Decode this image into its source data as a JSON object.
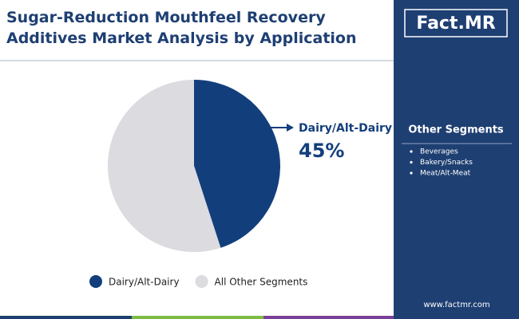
{
  "chart_data": {
    "type": "pie",
    "title": "Sugar-Reduction Mouthfeel Recovery Additives Market Analysis by Application",
    "categories": [
      "Dairy/Alt-Dairy",
      "All Other Segments"
    ],
    "values": [
      45,
      55
    ],
    "value_labels": [
      "45%",
      null
    ],
    "colors": [
      "#123f7c",
      "#dcdbe0"
    ],
    "legend": "bottom"
  },
  "logo": "Fact.MR",
  "side_panel": {
    "title": "Other Segments",
    "items": [
      "Beverages",
      "Bakery/Snacks",
      "Meat/Alt-Meat"
    ]
  },
  "footer": "www.factmr.com"
}
